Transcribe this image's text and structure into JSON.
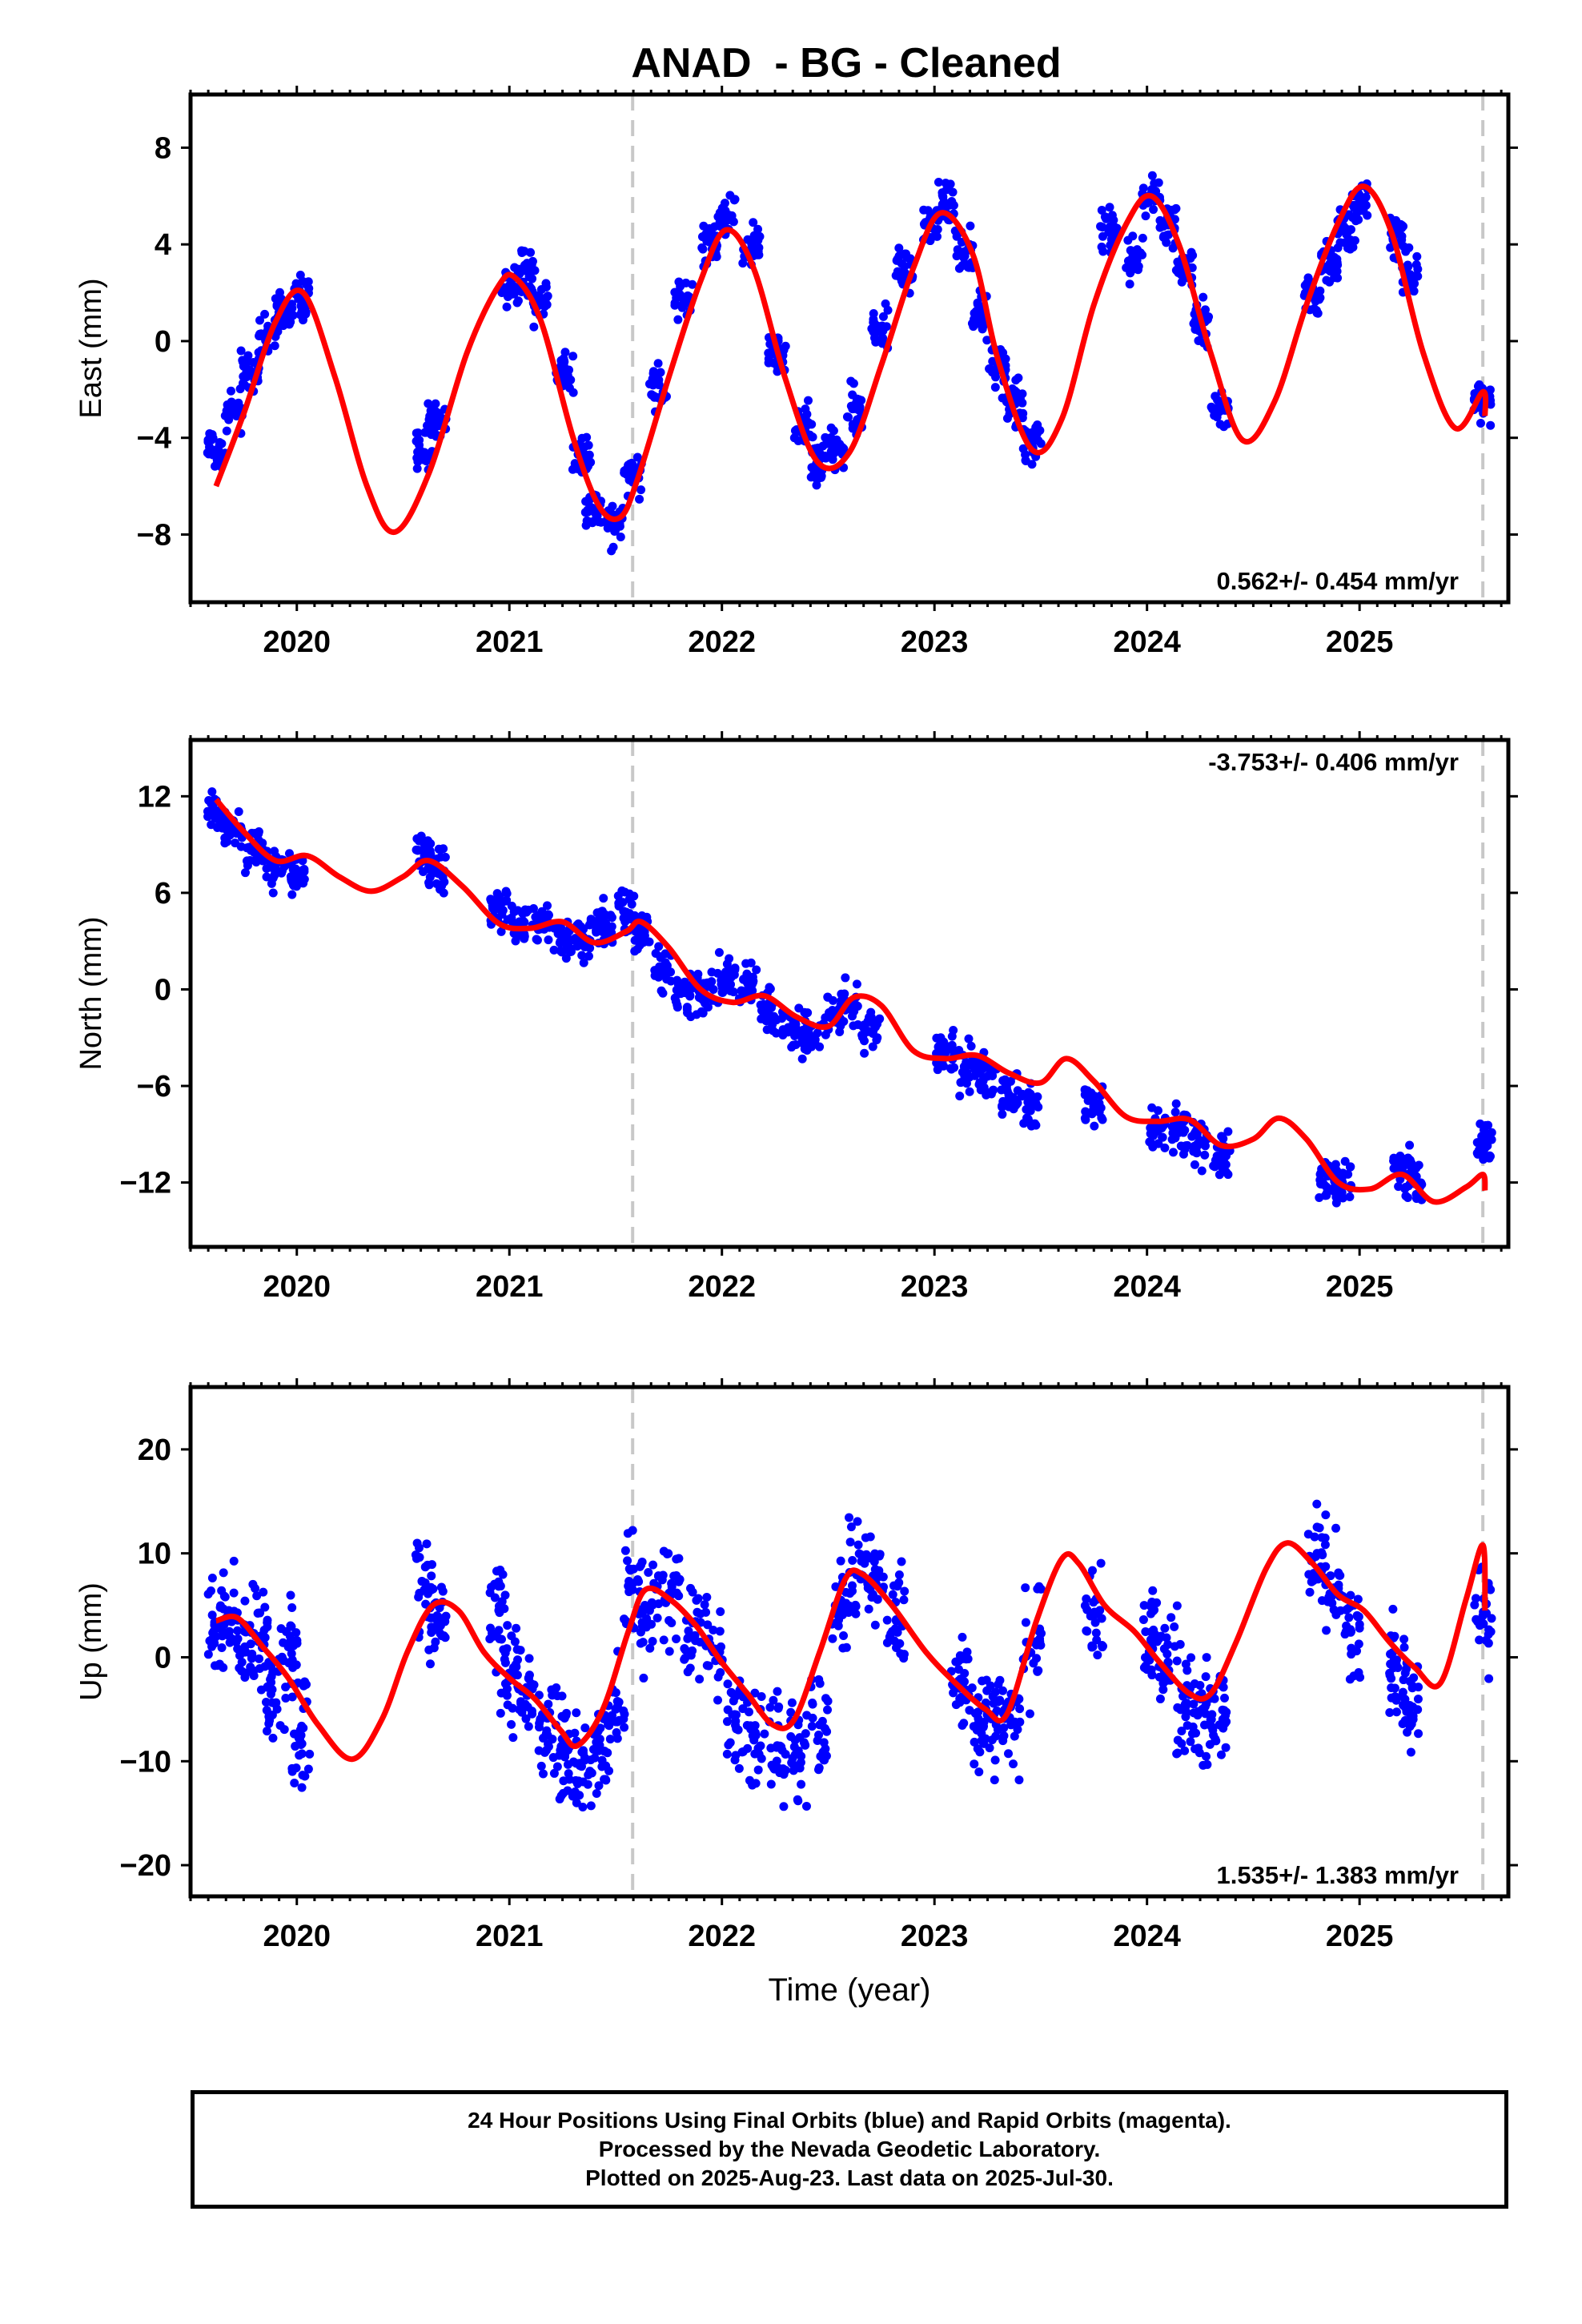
{
  "title": "ANAD  - BG - Cleaned",
  "colors": {
    "points": "#0000ff",
    "fit": "#ff0000",
    "dashed": "#c8c8c8",
    "axes": "#000000"
  },
  "footer": {
    "line1": "24 Hour Positions Using Final Orbits (blue) and Rapid Orbits (magenta).",
    "line2": "Processed by the Nevada Geodetic Laboratory.",
    "line3": "Plotted on 2025-Aug-23. Last data on 2025-Jul-30."
  },
  "chart_data": [
    {
      "type": "scatter",
      "ylabel": "East (mm)",
      "xlim": [
        2019.5,
        2025.7
      ],
      "ylim": [
        -10.8,
        10.2
      ],
      "yticks": [
        -8,
        -4,
        0,
        4,
        8
      ],
      "yticklabels": [
        "−8",
        "−4",
        "0",
        "4",
        "8"
      ],
      "xticks": [
        2020,
        2021,
        2022,
        2023,
        2024,
        2025
      ],
      "xticklabels": [
        "2020",
        "2021",
        "2022",
        "2023",
        "2024",
        "2025"
      ],
      "vlines": [
        2021.58,
        2025.58
      ],
      "rate": "0.562+/- 0.454 mm/yr",
      "rate_position": "bottom-right",
      "series": [
        {
          "kind": "points",
          "x": [
            2019.62,
            2019.7,
            2019.78,
            2019.86,
            2019.94,
            2020.02,
            2020.6,
            2020.66,
            2021.0,
            2021.08,
            2021.14,
            2021.26,
            2021.34,
            2021.4,
            2021.5,
            2021.58,
            2021.7,
            2021.82,
            2021.94,
            2022.02,
            2022.14,
            2022.26,
            2022.38,
            2022.46,
            2022.54,
            2022.62,
            2022.74,
            2022.86,
            2022.98,
            2023.06,
            2023.14,
            2023.22,
            2023.3,
            2023.38,
            2023.46,
            2023.82,
            2023.94,
            2024.02,
            2024.1,
            2024.18,
            2024.26,
            2024.34,
            2024.78,
            2024.86,
            2024.94,
            2025.0,
            2025.18,
            2025.24,
            2025.58
          ],
          "y": [
            -4.5,
            -3.0,
            -1.2,
            0.2,
            1.1,
            1.8,
            -4.6,
            -3.2,
            2.3,
            2.9,
            1.8,
            -1.2,
            -4.6,
            -7.0,
            -7.6,
            -5.5,
            -1.8,
            1.6,
            4.1,
            5.2,
            4.0,
            -0.6,
            -3.4,
            -4.9,
            -4.4,
            -2.8,
            0.4,
            3.1,
            4.8,
            5.6,
            3.7,
            0.9,
            -1.2,
            -2.6,
            -4.2,
            4.5,
            3.5,
            5.9,
            4.8,
            3.2,
            0.8,
            -2.7,
            1.8,
            3.2,
            4.6,
            5.8,
            4.5,
            2.7,
            -2.3
          ]
        },
        {
          "kind": "fit",
          "x": [
            2019.62,
            2019.75,
            2019.9,
            2020.03,
            2020.18,
            2020.33,
            2020.46,
            2020.62,
            2020.8,
            2020.95,
            2021.03,
            2021.15,
            2021.3,
            2021.42,
            2021.52,
            2021.6,
            2021.75,
            2021.9,
            2022.02,
            2022.15,
            2022.3,
            2022.45,
            2022.6,
            2022.75,
            2022.9,
            2023.03,
            2023.18,
            2023.3,
            2023.46,
            2023.6,
            2023.75,
            2023.9,
            2024.02,
            2024.15,
            2024.3,
            2024.45,
            2024.6,
            2024.75,
            2024.9,
            2025.02,
            2025.15,
            2025.3,
            2025.45,
            2025.58,
            2025.59
          ],
          "y": [
            -6.0,
            -3.0,
            0.8,
            2.0,
            -1.5,
            -6.0,
            -7.9,
            -5.5,
            -0.5,
            2.3,
            2.6,
            0.8,
            -4.0,
            -6.8,
            -7.3,
            -5.8,
            -1.5,
            2.5,
            4.6,
            3.0,
            -1.6,
            -5.0,
            -4.6,
            -1.0,
            3.0,
            5.3,
            3.6,
            -0.8,
            -4.5,
            -3.2,
            1.5,
            4.8,
            6.0,
            4.0,
            -0.5,
            -4.1,
            -2.5,
            1.5,
            4.9,
            6.4,
            4.5,
            -0.5,
            -3.6,
            -2.1,
            -3.1
          ]
        }
      ]
    },
    {
      "type": "scatter",
      "ylabel": "North (mm)",
      "xlim": [
        2019.5,
        2025.7
      ],
      "ylim": [
        -16.0,
        15.5
      ],
      "yticks": [
        -12,
        -6,
        0,
        6,
        12
      ],
      "yticklabels": [
        "−12",
        "−6",
        "0",
        "6",
        "12"
      ],
      "xticks": [
        2020,
        2021,
        2022,
        2023,
        2024,
        2025
      ],
      "xticklabels": [
        "2020",
        "2021",
        "2022",
        "2023",
        "2024",
        "2025"
      ],
      "vlines": [
        2021.58,
        2025.58
      ],
      "rate": "-3.753+/- 0.406 mm/yr",
      "rate_position": "top-right",
      "series": [
        {
          "kind": "points",
          "x": [
            2019.62,
            2019.7,
            2019.8,
            2019.9,
            2020.0,
            2020.6,
            2020.66,
            2020.95,
            2021.05,
            2021.15,
            2021.25,
            2021.35,
            2021.45,
            2021.55,
            2021.62,
            2021.72,
            2021.82,
            2021.92,
            2022.02,
            2022.12,
            2022.22,
            2022.32,
            2022.42,
            2022.52,
            2022.6,
            2022.7,
            2023.05,
            2023.15,
            2023.25,
            2023.35,
            2023.45,
            2023.75,
            2024.05,
            2024.15,
            2024.25,
            2024.35,
            2024.85,
            2024.92,
            2025.2,
            2025.25,
            2025.58
          ],
          "y": [
            11.0,
            9.8,
            8.5,
            7.5,
            7.0,
            8.3,
            7.5,
            5.0,
            4.0,
            4.2,
            3.3,
            3.1,
            3.9,
            4.8,
            3.5,
            1.3,
            -0.2,
            -0.3,
            0.5,
            0.4,
            -1.3,
            -2.4,
            -2.9,
            -1.6,
            -0.9,
            -2.6,
            -4.0,
            -4.8,
            -5.4,
            -6.6,
            -7.2,
            -7.0,
            -8.8,
            -8.9,
            -9.6,
            -10.4,
            -11.6,
            -12.0,
            -11.3,
            -11.9,
            -9.5
          ]
        },
        {
          "kind": "fit",
          "x": [
            2019.62,
            2019.75,
            2019.9,
            2020.05,
            2020.2,
            2020.35,
            2020.5,
            2020.62,
            2020.78,
            2020.95,
            2021.1,
            2021.25,
            2021.4,
            2021.55,
            2021.62,
            2021.75,
            2021.9,
            2022.05,
            2022.2,
            2022.35,
            2022.5,
            2022.62,
            2022.75,
            2022.9,
            2023.05,
            2023.2,
            2023.35,
            2023.5,
            2023.62,
            2023.75,
            2023.9,
            2024.05,
            2024.2,
            2024.35,
            2024.5,
            2024.62,
            2024.75,
            2024.9,
            2025.05,
            2025.2,
            2025.35,
            2025.5,
            2025.58,
            2025.59
          ],
          "y": [
            11.8,
            9.8,
            8.0,
            8.3,
            7.0,
            6.1,
            7.0,
            8.0,
            6.4,
            4.1,
            3.8,
            4.2,
            2.9,
            3.6,
            4.2,
            2.6,
            0.0,
            -0.8,
            -0.4,
            -1.7,
            -2.3,
            -0.5,
            -1.0,
            -3.8,
            -4.3,
            -4.1,
            -5.2,
            -5.8,
            -4.3,
            -5.7,
            -7.9,
            -8.2,
            -8.1,
            -9.7,
            -9.3,
            -8.0,
            -9.3,
            -12.0,
            -12.4,
            -11.5,
            -13.2,
            -12.3,
            -11.5,
            -12.5
          ]
        }
      ]
    },
    {
      "type": "scatter",
      "ylabel": "Up (mm)",
      "xlim": [
        2019.5,
        2025.7
      ],
      "ylim": [
        -23.0,
        26.0
      ],
      "yticks": [
        -20,
        -10,
        0,
        10,
        20
      ],
      "yticklabels": [
        "−20",
        "−10",
        "0",
        "10",
        "20"
      ],
      "xticks": [
        2020,
        2021,
        2022,
        2023,
        2024,
        2025
      ],
      "xticklabels": [
        "2020",
        "2021",
        "2022",
        "2023",
        "2024",
        "2025"
      ],
      "xlabel": "Time (year)",
      "vlines": [
        2021.58,
        2025.58
      ],
      "rate": "1.535+/- 1.383 mm/yr",
      "rate_position": "bottom-right",
      "series": [
        {
          "kind": "points",
          "x": [
            2019.62,
            2019.68,
            2019.76,
            2019.82,
            2019.9,
            2019.96,
            2020.02,
            2020.6,
            2020.66,
            2020.95,
            2021.0,
            2021.08,
            2021.18,
            2021.26,
            2021.34,
            2021.42,
            2021.5,
            2021.58,
            2021.66,
            2021.76,
            2021.86,
            2021.96,
            2022.06,
            2022.16,
            2022.26,
            2022.36,
            2022.46,
            2022.56,
            2022.64,
            2022.72,
            2022.82,
            2023.12,
            2023.2,
            2023.28,
            2023.36,
            2023.46,
            2023.75,
            2024.02,
            2024.1,
            2024.18,
            2024.26,
            2024.34,
            2024.8,
            2024.88,
            2024.96,
            2025.18,
            2025.24,
            2025.58
          ],
          "y": [
            2.0,
            4.5,
            0.5,
            1.5,
            -4.5,
            1.0,
            -7.5,
            6.5,
            4.0,
            4.5,
            -1.5,
            -3.5,
            -7.5,
            -8.5,
            -10.5,
            -9.0,
            -5.0,
            6.5,
            4.5,
            6.0,
            2.0,
            0.5,
            -5.5,
            -7.5,
            -8.5,
            -9.0,
            -6.5,
            5.5,
            8.0,
            7.5,
            3.5,
            -3.0,
            -7.0,
            -5.5,
            -6.5,
            1.5,
            4.0,
            1.5,
            -0.5,
            -4.5,
            -5.0,
            -6.5,
            10.0,
            6.5,
            2.5,
            -1.0,
            -5.5,
            4.0
          ]
        },
        {
          "kind": "fit",
          "x": [
            2019.62,
            2019.72,
            2019.84,
            2019.96,
            2020.1,
            2020.26,
            2020.4,
            2020.52,
            2020.64,
            2020.76,
            2020.88,
            2021.0,
            2021.12,
            2021.24,
            2021.32,
            2021.44,
            2021.56,
            2021.64,
            2021.76,
            2021.88,
            2022.0,
            2022.12,
            2022.24,
            2022.34,
            2022.46,
            2022.58,
            2022.66,
            2022.8,
            2022.96,
            2023.1,
            2023.24,
            2023.34,
            2023.48,
            2023.6,
            2023.68,
            2023.8,
            2023.94,
            2024.06,
            2024.2,
            2024.3,
            2024.42,
            2024.56,
            2024.66,
            2024.78,
            2024.9,
            2025.02,
            2025.14,
            2025.26,
            2025.38,
            2025.5,
            2025.58,
            2025.59
          ],
          "y": [
            3.5,
            3.8,
            1.0,
            -2.0,
            -6.5,
            -9.8,
            -6.0,
            0.5,
            5.0,
            4.5,
            0.5,
            -2.0,
            -4.0,
            -7.0,
            -8.5,
            -5.0,
            2.5,
            6.5,
            5.5,
            3.0,
            -0.5,
            -3.5,
            -6.5,
            -6.0,
            0.5,
            7.5,
            8.0,
            5.0,
            0.5,
            -2.5,
            -5.0,
            -5.5,
            3.5,
            9.5,
            9.0,
            5.0,
            2.5,
            -0.5,
            -3.5,
            -3.5,
            1.5,
            8.5,
            11.0,
            9.0,
            6.0,
            4.5,
            1.5,
            -1.0,
            -2.5,
            5.5,
            10.8,
            4.5
          ]
        }
      ]
    }
  ]
}
